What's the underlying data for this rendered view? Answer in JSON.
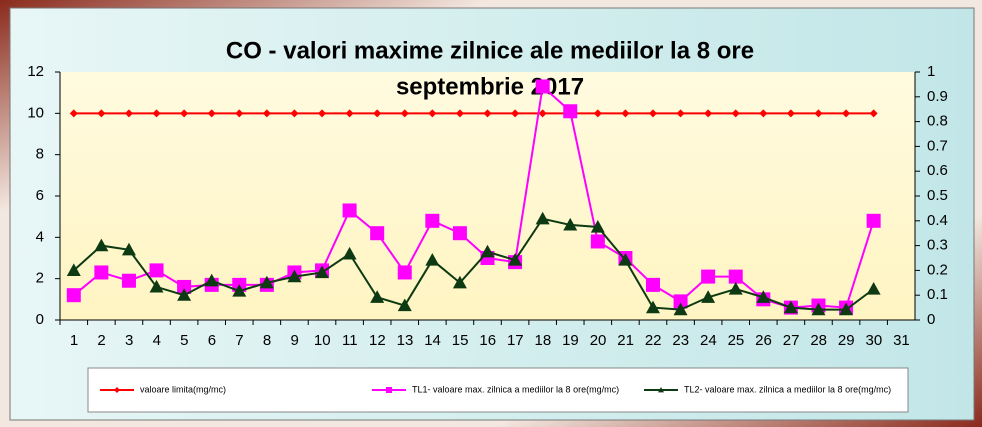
{
  "chart_data": {
    "type": "line",
    "title": [
      "CO - valori maxime zilnice ale mediilor la 8 ore",
      "septembrie  2017"
    ],
    "categories": [
      "1",
      "2",
      "3",
      "4",
      "5",
      "6",
      "7",
      "8",
      "9",
      "10",
      "11",
      "12",
      "13",
      "14",
      "15",
      "16",
      "17",
      "18",
      "19",
      "20",
      "21",
      "22",
      "23",
      "24",
      "25",
      "26",
      "27",
      "28",
      "29",
      "30",
      "31"
    ],
    "series": [
      {
        "name": "valoare limita(mg/mc)",
        "color": "#ff0000",
        "marker": "diamond",
        "values": [
          10,
          10,
          10,
          10,
          10,
          10,
          10,
          10,
          10,
          10,
          10,
          10,
          10,
          10,
          10,
          10,
          10,
          10,
          10,
          10,
          10,
          10,
          10,
          10,
          10,
          10,
          10,
          10,
          10,
          10,
          null
        ]
      },
      {
        "name": "TL1- valoare max. zilnica a mediilor la 8 ore(mg/mc)",
        "color": "#ff00ff",
        "marker": "square",
        "values": [
          1.2,
          2.3,
          1.9,
          2.4,
          1.6,
          1.7,
          1.7,
          1.7,
          2.3,
          2.4,
          5.3,
          4.2,
          2.3,
          4.8,
          4.2,
          3.0,
          2.8,
          11.3,
          10.1,
          3.8,
          3.0,
          1.7,
          0.9,
          2.1,
          2.1,
          1.0,
          0.6,
          0.7,
          0.6,
          4.8,
          null
        ]
      },
      {
        "name": "TL2- valoare max. zilnica a mediilor la 8 ore(mg/mc)",
        "color": "#0d3a12",
        "marker": "triangle",
        "values": [
          2.4,
          3.6,
          3.4,
          1.6,
          1.2,
          1.9,
          1.4,
          1.8,
          2.1,
          2.3,
          3.2,
          1.1,
          0.7,
          2.9,
          1.8,
          3.3,
          2.9,
          4.9,
          4.6,
          4.5,
          2.9,
          0.6,
          0.5,
          1.1,
          1.5,
          1.1,
          0.6,
          0.5,
          0.5,
          1.5,
          null
        ]
      }
    ],
    "ylim": [
      0,
      12
    ],
    "yticks": [
      0,
      2,
      4,
      6,
      8,
      10,
      12
    ],
    "y2lim": [
      0,
      1
    ],
    "y2ticks": [
      0,
      0.1,
      0.2,
      0.3,
      0.4,
      0.5,
      0.6,
      0.7,
      0.8,
      0.9,
      1
    ],
    "legend": "bottom"
  }
}
